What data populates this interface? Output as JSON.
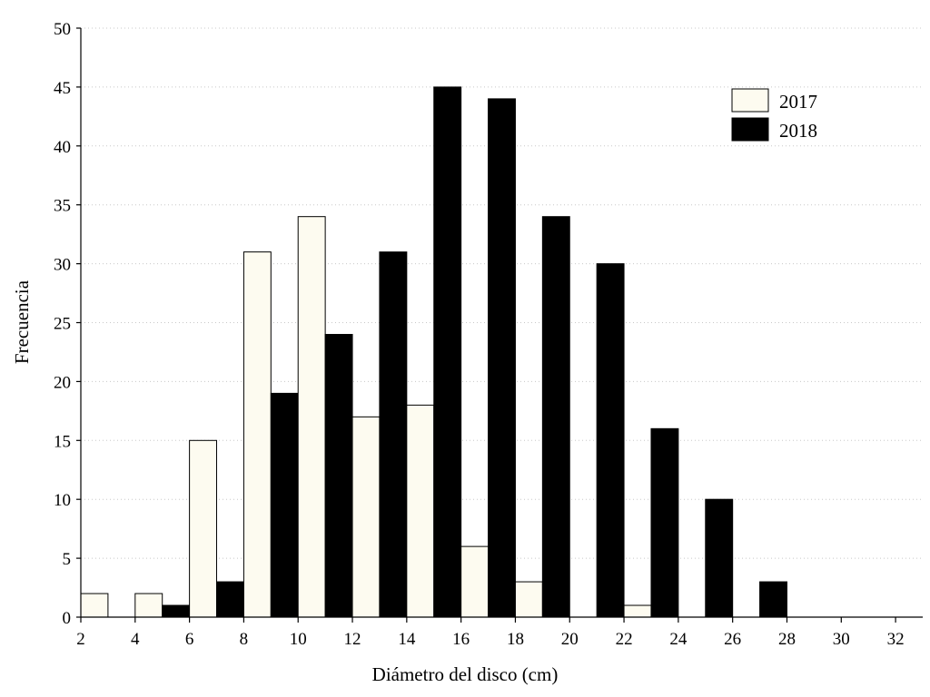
{
  "chart_data": {
    "type": "bar",
    "xlabel": "Diámetro del disco (cm)",
    "ylabel": "Frecuencia",
    "xlim": [
      2,
      33
    ],
    "ylim": [
      0,
      50
    ],
    "x_ticks": [
      2,
      4,
      6,
      8,
      10,
      12,
      14,
      16,
      18,
      20,
      22,
      24,
      26,
      28,
      30,
      32
    ],
    "y_ticks": [
      0,
      5,
      10,
      15,
      20,
      25,
      30,
      35,
      40,
      45,
      50
    ],
    "bins": [
      [
        2,
        4
      ],
      [
        4,
        6
      ],
      [
        6,
        8
      ],
      [
        8,
        10
      ],
      [
        10,
        12
      ],
      [
        12,
        14
      ],
      [
        14,
        16
      ],
      [
        16,
        18
      ],
      [
        18,
        20
      ],
      [
        20,
        22
      ],
      [
        22,
        24
      ],
      [
        24,
        26
      ],
      [
        26,
        28
      ],
      [
        28,
        30
      ],
      [
        30,
        32
      ]
    ],
    "series": [
      {
        "name": "2017",
        "color": "#fdfbf0",
        "values": [
          2,
          2,
          15,
          31,
          34,
          17,
          18,
          6,
          3,
          0,
          1,
          0,
          0,
          0,
          0
        ]
      },
      {
        "name": "2018",
        "color": "#000000",
        "values": [
          0,
          1,
          3,
          19,
          24,
          31,
          45,
          44,
          34,
          30,
          16,
          10,
          3,
          0,
          0
        ]
      }
    ],
    "grid": true,
    "legend_position": "top-right"
  }
}
